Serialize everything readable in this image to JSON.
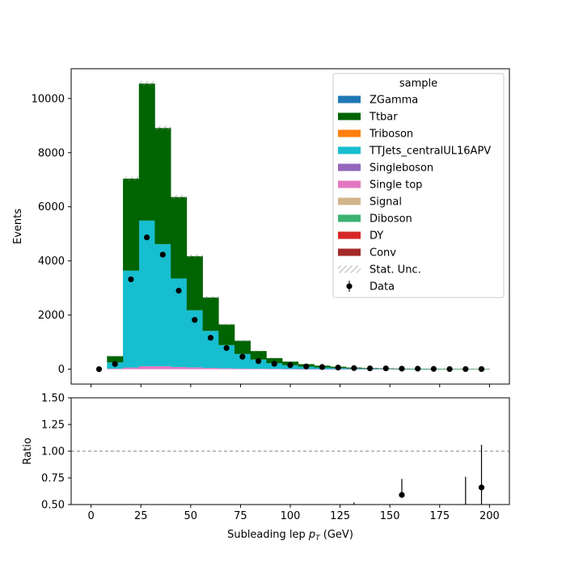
{
  "chart_data": [
    {
      "type": "bar",
      "subtype": "stacked-histogram",
      "ylabel": "Events",
      "xlim": [
        -10,
        210
      ],
      "ylim": [
        -550,
        11100
      ],
      "bin_width": 8,
      "x_ticks": [
        0,
        25,
        50,
        75,
        100,
        125,
        150,
        175,
        200
      ],
      "y_ticks": [
        0,
        2000,
        4000,
        6000,
        8000,
        10000
      ],
      "legend": {
        "title": "sample",
        "placement": "top-right",
        "entries": [
          {
            "label": "ZGamma",
            "color": "#1f77b4",
            "kind": "patch"
          },
          {
            "label": "Ttbar",
            "color": "#006400",
            "kind": "patch"
          },
          {
            "label": "Triboson",
            "color": "#ff7f0e",
            "kind": "patch"
          },
          {
            "label": "TTJets_centralUL16APV",
            "color": "#17becf",
            "kind": "patch"
          },
          {
            "label": "Singleboson",
            "color": "#9467bd",
            "kind": "patch"
          },
          {
            "label": "Single top",
            "color": "#e377c2",
            "kind": "patch"
          },
          {
            "label": "Signal",
            "color": "#d2b48c",
            "kind": "patch"
          },
          {
            "label": "Diboson",
            "color": "#3cb371",
            "kind": "patch"
          },
          {
            "label": "DY",
            "color": "#d62728",
            "kind": "patch"
          },
          {
            "label": "Conv",
            "color": "#a52a2a",
            "kind": "patch"
          },
          {
            "label": "Stat. Unc.",
            "color": "#888888",
            "kind": "hatch"
          },
          {
            "label": "Data",
            "color": "#000000",
            "kind": "errorbar"
          }
        ]
      },
      "bins_low": [
        0,
        8,
        16,
        24,
        32,
        40,
        48,
        56,
        64,
        72,
        80,
        88,
        96,
        104,
        112,
        120,
        128,
        136,
        144,
        152,
        160,
        168,
        176,
        184,
        192
      ],
      "stack": [
        {
          "name": "Single top",
          "color": "#e377c2",
          "values": [
            0,
            20,
            60,
            110,
            110,
            80,
            65,
            45,
            30,
            20,
            15,
            10,
            6,
            4,
            3,
            2,
            2,
            1,
            1,
            1,
            0,
            0,
            0,
            0,
            0
          ]
        },
        {
          "name": "TTJets_centralUL16APV",
          "color": "#17becf",
          "values": [
            0,
            230,
            3580,
            5380,
            4510,
            3270,
            2110,
            1370,
            860,
            540,
            340,
            210,
            140,
            90,
            60,
            40,
            25,
            18,
            12,
            8,
            6,
            4,
            3,
            2,
            2
          ]
        },
        {
          "name": "Ttbar",
          "color": "#006400",
          "values": [
            0,
            230,
            3400,
            5060,
            4290,
            3010,
            2000,
            1235,
            760,
            490,
            315,
            190,
            134,
            91,
            67,
            48,
            33,
            21,
            17,
            11,
            9,
            6,
            4,
            3,
            2
          ]
        }
      ],
      "data_points": {
        "x": [
          4,
          12,
          20,
          28,
          36,
          44,
          52,
          60,
          68,
          76,
          84,
          92,
          100,
          108,
          116,
          124,
          132,
          140,
          148,
          156,
          164,
          172,
          180,
          188,
          196
        ],
        "y": [
          0,
          190,
          3320,
          4870,
          4230,
          2900,
          1820,
          1160,
          780,
          460,
          300,
          200,
          150,
          100,
          80,
          60,
          40,
          30,
          30,
          20,
          20,
          10,
          5,
          5,
          5
        ]
      }
    },
    {
      "type": "scatter",
      "subtype": "ratio-errorbar",
      "xlabel": "Subleading lep",
      "xlabel_math": "p",
      "xlabel_sub": "T",
      "xlabel_unit": "(GeV)",
      "ylabel": "Ratio",
      "xlim": [
        -10,
        210
      ],
      "ylim": [
        0.5,
        1.5
      ],
      "x_ticks": [
        0,
        25,
        50,
        75,
        100,
        125,
        150,
        175,
        200
      ],
      "y_ticks": [
        "0.50",
        "0.75",
        "1.00",
        "1.25",
        "1.50"
      ],
      "reference_line": 1.0,
      "points": [
        {
          "x": 156,
          "y": 0.59,
          "err_lo": 0.59,
          "err_hi": 0.74,
          "marker": true
        },
        {
          "x": 196,
          "y": 0.66,
          "err_lo": 0.5,
          "err_hi": 1.06,
          "marker": true
        },
        {
          "x": 188,
          "y": 0.5,
          "err_lo": 0.5,
          "err_hi": 0.76,
          "marker": false
        },
        {
          "x": 132,
          "y": 0.5,
          "err_lo": 0.5,
          "err_hi": 0.52,
          "marker": false
        },
        {
          "x": 36,
          "y": 0.5,
          "err_lo": 0.5,
          "err_hi": 0.505,
          "marker": false
        }
      ]
    }
  ]
}
